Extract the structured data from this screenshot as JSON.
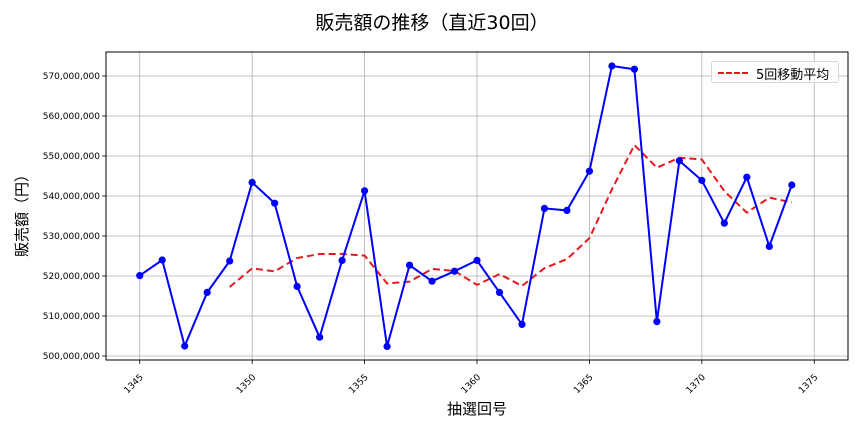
{
  "chart_data": {
    "type": "line",
    "title": "販売額の推移（直近30回）",
    "xlabel": "抽選回号",
    "ylabel": "販売額（円）",
    "x": [
      1345,
      1346,
      1347,
      1348,
      1349,
      1350,
      1351,
      1352,
      1353,
      1354,
      1355,
      1356,
      1357,
      1358,
      1359,
      1360,
      1361,
      1362,
      1363,
      1364,
      1365,
      1366,
      1367,
      1368,
      1369,
      1370,
      1371,
      1372,
      1373,
      1374
    ],
    "series": [
      {
        "name": "販売額",
        "color": "#0000ff",
        "style": "solid",
        "marker": "circle",
        "values": [
          520100000,
          524000000,
          502500000,
          515900000,
          523750000,
          543400000,
          538200000,
          517400000,
          504700000,
          523900000,
          541300000,
          502400000,
          522700000,
          518700000,
          521200000,
          523900000,
          515900000,
          507900000,
          536900000,
          536400000,
          546200000,
          572500000,
          571700000,
          508600000,
          548800000,
          543900000,
          533200000,
          544700000,
          527400000,
          542750000
        ]
      },
      {
        "name": "5回移動平均",
        "color": "#e31a1c",
        "style": "dashed",
        "values": [
          null,
          null,
          null,
          null,
          517250000,
          521910000,
          521150000,
          524490000,
          525490000,
          525520000,
          525100000,
          518140000,
          518600000,
          521760000,
          521260000,
          517780000,
          520480000,
          517520000,
          521960000,
          524220000,
          529460000,
          541640000,
          552740000,
          547080000,
          549560000,
          549140000,
          541240000,
          535840000,
          539600000,
          538390000
        ]
      }
    ],
    "xticks": [
      1345,
      1350,
      1355,
      1360,
      1365,
      1370,
      1375
    ],
    "xtick_labels": [
      "1345",
      "1350",
      "1355",
      "1360",
      "1365",
      "1370",
      "1375"
    ],
    "yticks": [
      500000000,
      510000000,
      520000000,
      530000000,
      540000000,
      550000000,
      560000000,
      570000000
    ],
    "ytick_labels": [
      "500,000,000",
      "510,000,000",
      "520,000,000",
      "530,000,000",
      "540,000,000",
      "550,000,000",
      "560,000,000",
      "570,000,000"
    ],
    "xlim": [
      1343.5,
      1376.5
    ],
    "ylim": [
      499000000,
      576000000
    ],
    "grid": true,
    "legend_position": "upper right",
    "legend": [
      "5回移動平均"
    ]
  },
  "legend": {
    "label": "5回移動平均"
  }
}
